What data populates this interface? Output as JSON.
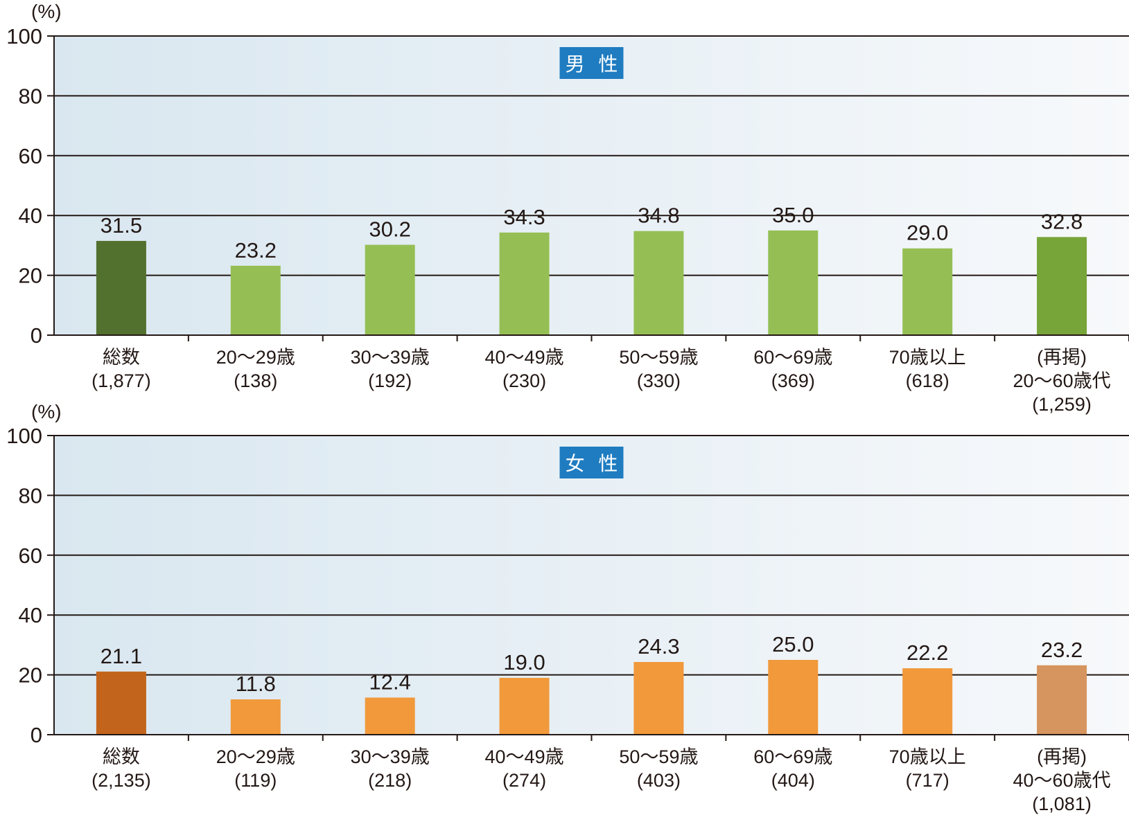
{
  "chart_data": [
    {
      "type": "bar",
      "title": "男 性",
      "ylabel": "(%)",
      "ylim": [
        0,
        100
      ],
      "yticks": [
        "0",
        "20",
        "40",
        "60",
        "80",
        "100"
      ],
      "grid": true,
      "categories": [
        [
          "総数",
          "(1,877)"
        ],
        [
          "20～29歳",
          "(138)"
        ],
        [
          "30～39歳",
          "(192)"
        ],
        [
          "40～49歳",
          "(230)"
        ],
        [
          "50～59歳",
          "(330)"
        ],
        [
          "60～69歳",
          "(369)"
        ],
        [
          "70歳以上",
          "(618)"
        ],
        [
          "(再掲)",
          "20～60歳代",
          "(1,259)"
        ]
      ],
      "values": [
        31.5,
        23.2,
        30.2,
        34.3,
        34.8,
        35.0,
        29.0,
        32.8
      ],
      "value_labels": [
        "31.5",
        "23.2",
        "30.2",
        "34.3",
        "34.8",
        "35.0",
        "29.0",
        "32.8"
      ],
      "colors": [
        "#53712e",
        "#95bf54",
        "#95bf54",
        "#95bf54",
        "#95bf54",
        "#95bf54",
        "#95bf54",
        "#77a53a"
      ],
      "badge_color": "#1f7cc1"
    },
    {
      "type": "bar",
      "title": "女 性",
      "ylabel": "(%)",
      "ylim": [
        0,
        100
      ],
      "yticks": [
        "0",
        "20",
        "40",
        "60",
        "80",
        "100"
      ],
      "grid": true,
      "categories": [
        [
          "総数",
          "(2,135)"
        ],
        [
          "20～29歳",
          "(119)"
        ],
        [
          "30～39歳",
          "(218)"
        ],
        [
          "40～49歳",
          "(274)"
        ],
        [
          "50～59歳",
          "(403)"
        ],
        [
          "60～69歳",
          "(404)"
        ],
        [
          "70歳以上",
          "(717)"
        ],
        [
          "(再掲)",
          "40～60歳代",
          "(1,081)"
        ]
      ],
      "values": [
        21.1,
        11.8,
        12.4,
        19.0,
        24.3,
        25.0,
        22.2,
        23.2
      ],
      "value_labels": [
        "21.1",
        "11.8",
        "12.4",
        "19.0",
        "24.3",
        "25.0",
        "22.2",
        "23.2"
      ],
      "colors": [
        "#c2641c",
        "#f1993b",
        "#f1993b",
        "#f1993b",
        "#f1993b",
        "#f1993b",
        "#f1993b",
        "#d6955e"
      ],
      "badge_color": "#1f7cc1"
    }
  ]
}
